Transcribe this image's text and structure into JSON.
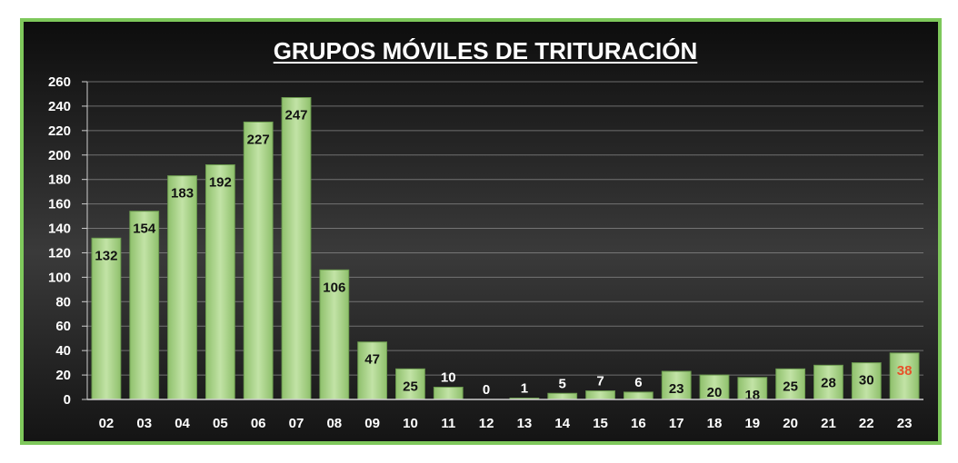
{
  "chart_data": {
    "type": "bar",
    "title": "GRUPOS MÓVILES DE TRITURACIÓN",
    "xlabel": "",
    "ylabel": "",
    "ylim": [
      0,
      260
    ],
    "ytick_step": 20,
    "grid": true,
    "legend": "none",
    "categories": [
      "02",
      "03",
      "04",
      "05",
      "06",
      "07",
      "08",
      "09",
      "10",
      "11",
      "12",
      "13",
      "14",
      "15",
      "16",
      "17",
      "18",
      "19",
      "20",
      "21",
      "22",
      "23"
    ],
    "values": [
      132,
      154,
      183,
      192,
      227,
      247,
      106,
      47,
      25,
      10,
      0,
      1,
      5,
      7,
      6,
      23,
      20,
      18,
      25,
      28,
      30,
      38
    ],
    "colors": {
      "background": "#1c1c1c",
      "border": "#7ec85b",
      "bar_fill": "#a9d38a",
      "bar_edge": "#6d9c50",
      "label_default": "#111111",
      "label_light": "#ffffff",
      "label_highlight": "#e8502a"
    },
    "highlight_index": 21
  }
}
